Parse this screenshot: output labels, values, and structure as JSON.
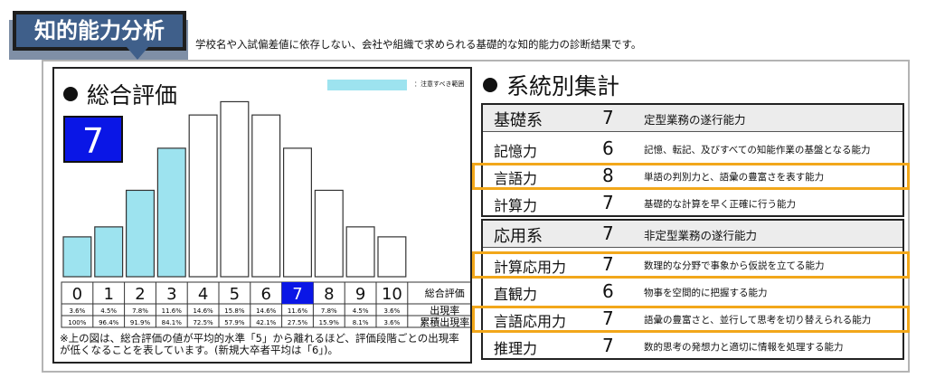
{
  "header": {
    "tag": "知的能力分析",
    "intro": "学校名や入試偏差値に依存しない、会社や組織で求められる基礎的な知的能力の診断結果です。"
  },
  "overall": {
    "title": "総合評価",
    "score": "7",
    "legend_label": "：注意すべき範囲",
    "note": "※上の図は、総合評価の値が平均的水準「5」から離れるほど、評価段階ごとの出現率が低くなることを表しています。(新規大卒者平均は「6」)。"
  },
  "colors": {
    "highlight_bar": "#9de3ef",
    "selected": "#0a16e6",
    "outline": "#f2a71a"
  },
  "chart_data": {
    "type": "bar",
    "categories": [
      "0",
      "1",
      "2",
      "3",
      "4",
      "5",
      "6",
      "7",
      "8",
      "9",
      "10"
    ],
    "values": [
      3.6,
      4.5,
      7.8,
      11.6,
      14.6,
      15.8,
      14.6,
      11.6,
      7.8,
      4.5,
      3.6
    ],
    "shaded_categories": [
      "0",
      "1",
      "2",
      "3"
    ],
    "selected_category": "7",
    "row_labels": {
      "category": "総合評価",
      "rate": "出現率",
      "cumulative": "累積出現率"
    },
    "rates": [
      "3.6%",
      "4.5%",
      "7.8%",
      "11.6%",
      "14.6%",
      "15.8%",
      "14.6%",
      "11.6%",
      "7.8%",
      "4.5%",
      "3.6%"
    ],
    "cumulative": [
      "100%",
      "96.4%",
      "91.9%",
      "84.1%",
      "72.5%",
      "57.9%",
      "42.1%",
      "27.5%",
      "15.9%",
      "8.1%",
      "3.6%"
    ]
  },
  "systems": {
    "title": "系統別集計",
    "groups": [
      {
        "name": "基礎系",
        "score": "7",
        "desc": "定型業務の遂行能力",
        "items": [
          {
            "name": "記憶力",
            "score": "6",
            "desc": "記憶、転記、及びすべての知能作業の基盤となる能力",
            "highlight": false
          },
          {
            "name": "言語力",
            "score": "8",
            "desc": "単語の判別力と、語彙の豊富さを表す能力",
            "highlight": true
          },
          {
            "name": "計算力",
            "score": "7",
            "desc": "基礎的な計算を早く正確に行う能力",
            "highlight": false
          }
        ]
      },
      {
        "name": "応用系",
        "score": "7",
        "desc": "非定型業務の遂行能力",
        "items": [
          {
            "name": "計算応用力",
            "score": "7",
            "desc": "数理的な分野で事象から仮説を立てる能力",
            "highlight": true
          },
          {
            "name": "直観力",
            "score": "6",
            "desc": "物事を空間的に把握する能力",
            "highlight": false
          },
          {
            "name": "言語応用力",
            "score": "7",
            "desc": "語彙の豊富さと、並行して思考を切り替えられる能力",
            "highlight": true
          },
          {
            "name": "推理力",
            "score": "7",
            "desc": "数的思考の発想力と適切に情報を処理する能力",
            "highlight": false
          }
        ]
      }
    ]
  }
}
